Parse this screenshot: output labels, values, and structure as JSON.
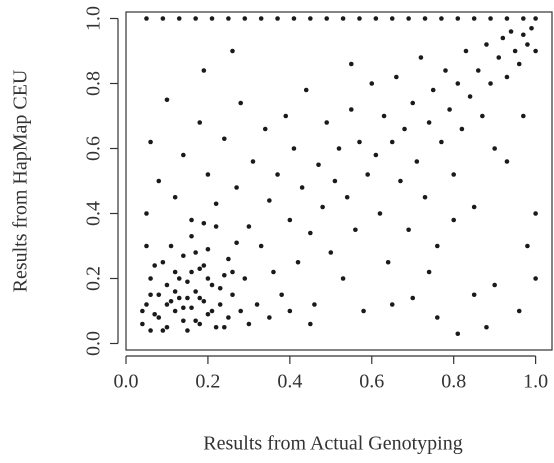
{
  "chart_data": {
    "type": "scatter",
    "xlabel": "Results from Actual Genotyping",
    "ylabel": "Results from HapMap CEU",
    "color": "#1a1a1a",
    "xlim": [
      0,
      1.04
    ],
    "ylim": [
      -0.02,
      1.02
    ],
    "xticks": [
      {
        "value": 0,
        "label": "0.0"
      },
      0.2,
      0.4,
      0.6,
      0.8,
      {
        "value": 1,
        "label": "1.0"
      }
    ],
    "yticks": [
      {
        "value": 0,
        "label": "0.0"
      },
      0.2,
      0.4,
      0.6,
      0.8,
      {
        "value": 1,
        "label": "1.0"
      }
    ],
    "x": [
      0.05,
      0.09,
      0.13,
      0.17,
      0.21,
      0.25,
      0.29,
      0.33,
      0.37,
      0.41,
      0.45,
      0.49,
      0.53,
      0.57,
      0.61,
      0.65,
      0.69,
      0.73,
      0.77,
      0.81,
      0.85,
      0.89,
      0.93,
      0.97,
      1.0,
      0.04,
      0.05,
      0.06,
      0.07,
      0.08,
      0.09,
      0.1,
      0.1,
      0.11,
      0.12,
      0.12,
      0.13,
      0.14,
      0.14,
      0.15,
      0.16,
      0.16,
      0.17,
      0.18,
      0.18,
      0.19,
      0.2,
      0.2,
      0.21,
      0.22,
      0.22,
      0.23,
      0.24,
      0.25,
      0.25,
      0.26,
      0.27,
      0.28,
      0.29,
      0.3,
      0.05,
      0.07,
      0.09,
      0.11,
      0.13,
      0.15,
      0.17,
      0.19,
      0.21,
      0.23,
      0.06,
      0.08,
      0.12,
      0.14,
      0.16,
      0.18,
      0.2,
      0.04,
      0.06,
      0.1,
      0.15,
      0.17,
      0.19,
      0.24,
      0.26,
      0.05,
      0.06,
      0.08,
      0.1,
      0.12,
      0.14,
      0.16,
      0.18,
      0.19,
      0.2,
      0.22,
      0.24,
      0.26,
      0.27,
      0.28,
      0.3,
      0.31,
      0.33,
      0.34,
      0.35,
      0.36,
      0.37,
      0.38,
      0.39,
      0.4,
      0.41,
      0.42,
      0.43,
      0.44,
      0.45,
      0.46,
      0.47,
      0.48,
      0.49,
      0.5,
      0.51,
      0.52,
      0.53,
      0.54,
      0.55,
      0.56,
      0.57,
      0.58,
      0.59,
      0.6,
      0.32,
      0.35,
      0.4,
      0.45,
      0.55,
      0.61,
      0.62,
      0.63,
      0.64,
      0.65,
      0.66,
      0.67,
      0.68,
      0.69,
      0.7,
      0.71,
      0.72,
      0.73,
      0.74,
      0.75,
      0.76,
      0.77,
      0.78,
      0.79,
      0.8,
      0.81,
      0.82,
      0.83,
      0.84,
      0.85,
      0.86,
      0.87,
      0.88,
      0.89,
      0.9,
      0.91,
      0.92,
      0.93,
      0.94,
      0.95,
      0.96,
      0.97,
      0.98,
      0.99,
      1.0,
      1.0,
      0.98,
      0.96,
      0.9,
      0.88,
      0.85,
      0.81,
      0.76,
      0.7,
      0.65,
      0.93,
      0.97,
      1.0,
      0.8,
      0.74
    ],
    "values": [
      1.0,
      1.0,
      1.0,
      1.0,
      1.0,
      1.0,
      1.0,
      1.0,
      1.0,
      1.0,
      1.0,
      1.0,
      1.0,
      1.0,
      1.0,
      1.0,
      1.0,
      1.0,
      1.0,
      1.0,
      1.0,
      1.0,
      1.0,
      1.0,
      1.0,
      0.06,
      0.12,
      0.2,
      0.09,
      0.15,
      0.25,
      0.05,
      0.18,
      0.3,
      0.1,
      0.22,
      0.14,
      0.07,
      0.27,
      0.19,
      0.11,
      0.33,
      0.16,
      0.06,
      0.23,
      0.13,
      0.29,
      0.09,
      0.18,
      0.05,
      0.36,
      0.12,
      0.21,
      0.08,
      0.26,
      0.15,
      0.31,
      0.1,
      0.2,
      0.06,
      0.3,
      0.24,
      0.04,
      0.13,
      0.2,
      0.04,
      0.28,
      0.37,
      0.1,
      0.17,
      0.15,
      0.08,
      0.16,
      0.11,
      0.22,
      0.14,
      0.2,
      0.1,
      0.04,
      0.12,
      0.14,
      0.07,
      0.24,
      0.05,
      0.22,
      0.4,
      0.62,
      0.5,
      0.75,
      0.45,
      0.58,
      0.38,
      0.68,
      0.84,
      0.52,
      0.43,
      0.63,
      0.9,
      0.48,
      0.74,
      0.36,
      0.56,
      0.3,
      0.66,
      0.44,
      0.22,
      0.52,
      0.15,
      0.7,
      0.38,
      0.6,
      0.25,
      0.48,
      0.78,
      0.34,
      0.12,
      0.55,
      0.42,
      0.68,
      0.28,
      0.5,
      0.6,
      0.2,
      0.45,
      0.72,
      0.35,
      0.62,
      0.1,
      0.52,
      0.8,
      0.12,
      0.08,
      0.1,
      0.06,
      0.86,
      0.58,
      0.4,
      0.7,
      0.25,
      0.62,
      0.82,
      0.5,
      0.66,
      0.35,
      0.74,
      0.56,
      0.88,
      0.45,
      0.68,
      0.78,
      0.3,
      0.62,
      0.84,
      0.72,
      0.52,
      0.8,
      0.66,
      0.9,
      0.76,
      0.42,
      0.84,
      0.7,
      0.92,
      0.8,
      0.6,
      0.88,
      0.94,
      0.82,
      0.96,
      0.9,
      0.86,
      0.95,
      0.92,
      0.97,
      0.9,
      0.4,
      0.3,
      0.1,
      0.18,
      0.05,
      0.15,
      0.03,
      0.08,
      0.14,
      0.12,
      0.56,
      0.7,
      0.2,
      0.38,
      0.22
    ]
  }
}
